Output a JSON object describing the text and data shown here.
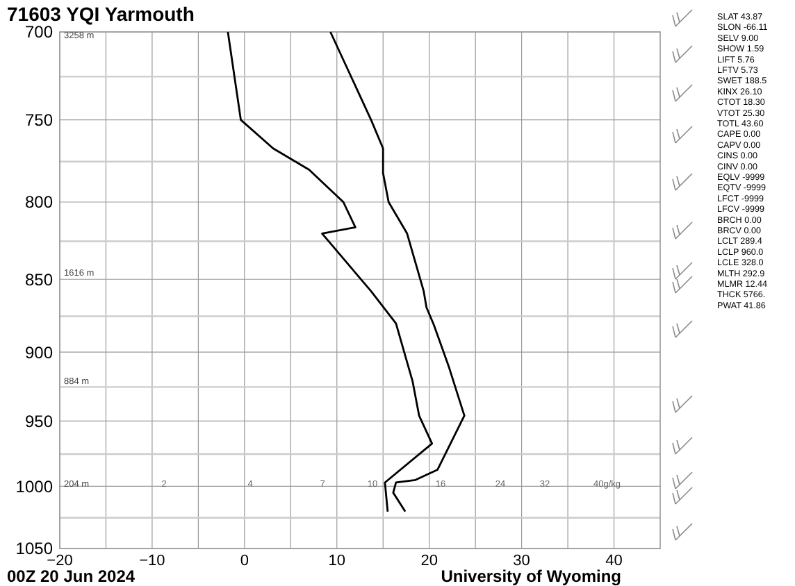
{
  "chart_data": {
    "type": "line",
    "title": "71603 YQI Yarmouth",
    "log": "y",
    "grid": true,
    "marker": "none",
    "line_style": "solid",
    "xlim": [
      -20,
      45
    ],
    "ylim": [
      1050,
      700
    ],
    "xticks": [
      -20,
      {
        "value": -15,
        "label": null
      },
      -10,
      {
        "value": -5,
        "label": null
      },
      0,
      {
        "value": 5,
        "label": null
      },
      10,
      {
        "value": 15,
        "label": null
      },
      20,
      {
        "value": 25,
        "label": null
      },
      30,
      {
        "value": 35,
        "label": null
      },
      40
    ],
    "yticks": [
      700,
      {
        "value": 725,
        "label": null
      },
      750,
      {
        "value": 775,
        "label": null
      },
      800,
      {
        "value": 825,
        "label": null
      },
      850,
      {
        "value": 875,
        "label": null
      },
      900,
      {
        "value": 925,
        "label": null
      },
      950,
      {
        "value": 975,
        "label": null
      },
      1000,
      {
        "value": 1025,
        "label": null
      },
      1050
    ],
    "series": [
      {
        "color": "#000000",
        "x": [
          9.3,
          13.7,
          15.0,
          15.0,
          15.6,
          17.6,
          19.4,
          19.7,
          20.5,
          22.1,
          23.8,
          20.9,
          18.5,
          16.4,
          16.1,
          17.4
        ],
        "values": [
          700,
          750,
          767,
          782,
          800,
          820,
          858,
          869,
          881,
          910,
          946,
          987,
          995,
          997,
          1005,
          1020
        ]
      },
      {
        "color": "#000000",
        "x": [
          -1.8,
          -0.4,
          3.1,
          7.0,
          10.7,
          12.0,
          8.4,
          13.7,
          16.4,
          18.2,
          18.9,
          20.3,
          15.2,
          15.5
        ],
        "values": [
          700,
          750,
          767,
          780,
          800,
          816,
          820,
          858,
          880,
          921,
          946,
          967,
          997,
          1020
        ]
      }
    ],
    "annotations": [
      "00Z 20 Jun 2024",
      "University of Wyoming",
      "SLAT 43.87",
      "SLON -66.11",
      "SELV 9.00",
      "SHOW 1.59",
      "LIFT 5.76",
      "LFTV 5.73",
      "SWET 188.5",
      "KINX 26.10",
      "CTOT 18.30",
      "VTOT 25.30",
      "TOTL 43.60",
      "CAPE 0.00",
      "CAPV 0.00",
      "CINS 0.00",
      "CINV 0.00",
      "EQLV -9999",
      "EQTV -9999",
      "LFCT -9999",
      "LFCV -9999",
      "BRCH 0.00",
      "BRCV 0.00",
      "LCLT 289.4",
      "LCLP 960.0",
      "LCLE 328.0",
      "MLTH 292.9",
      "MLMR 12.44",
      "THCK 5766.",
      "PWAT 41.86",
      "3258 m",
      "1616 m",
      "884 m",
      "204 m",
      "2",
      "4",
      "7",
      "10",
      "16",
      "24",
      "32",
      "40g/kg"
    ]
  }
}
